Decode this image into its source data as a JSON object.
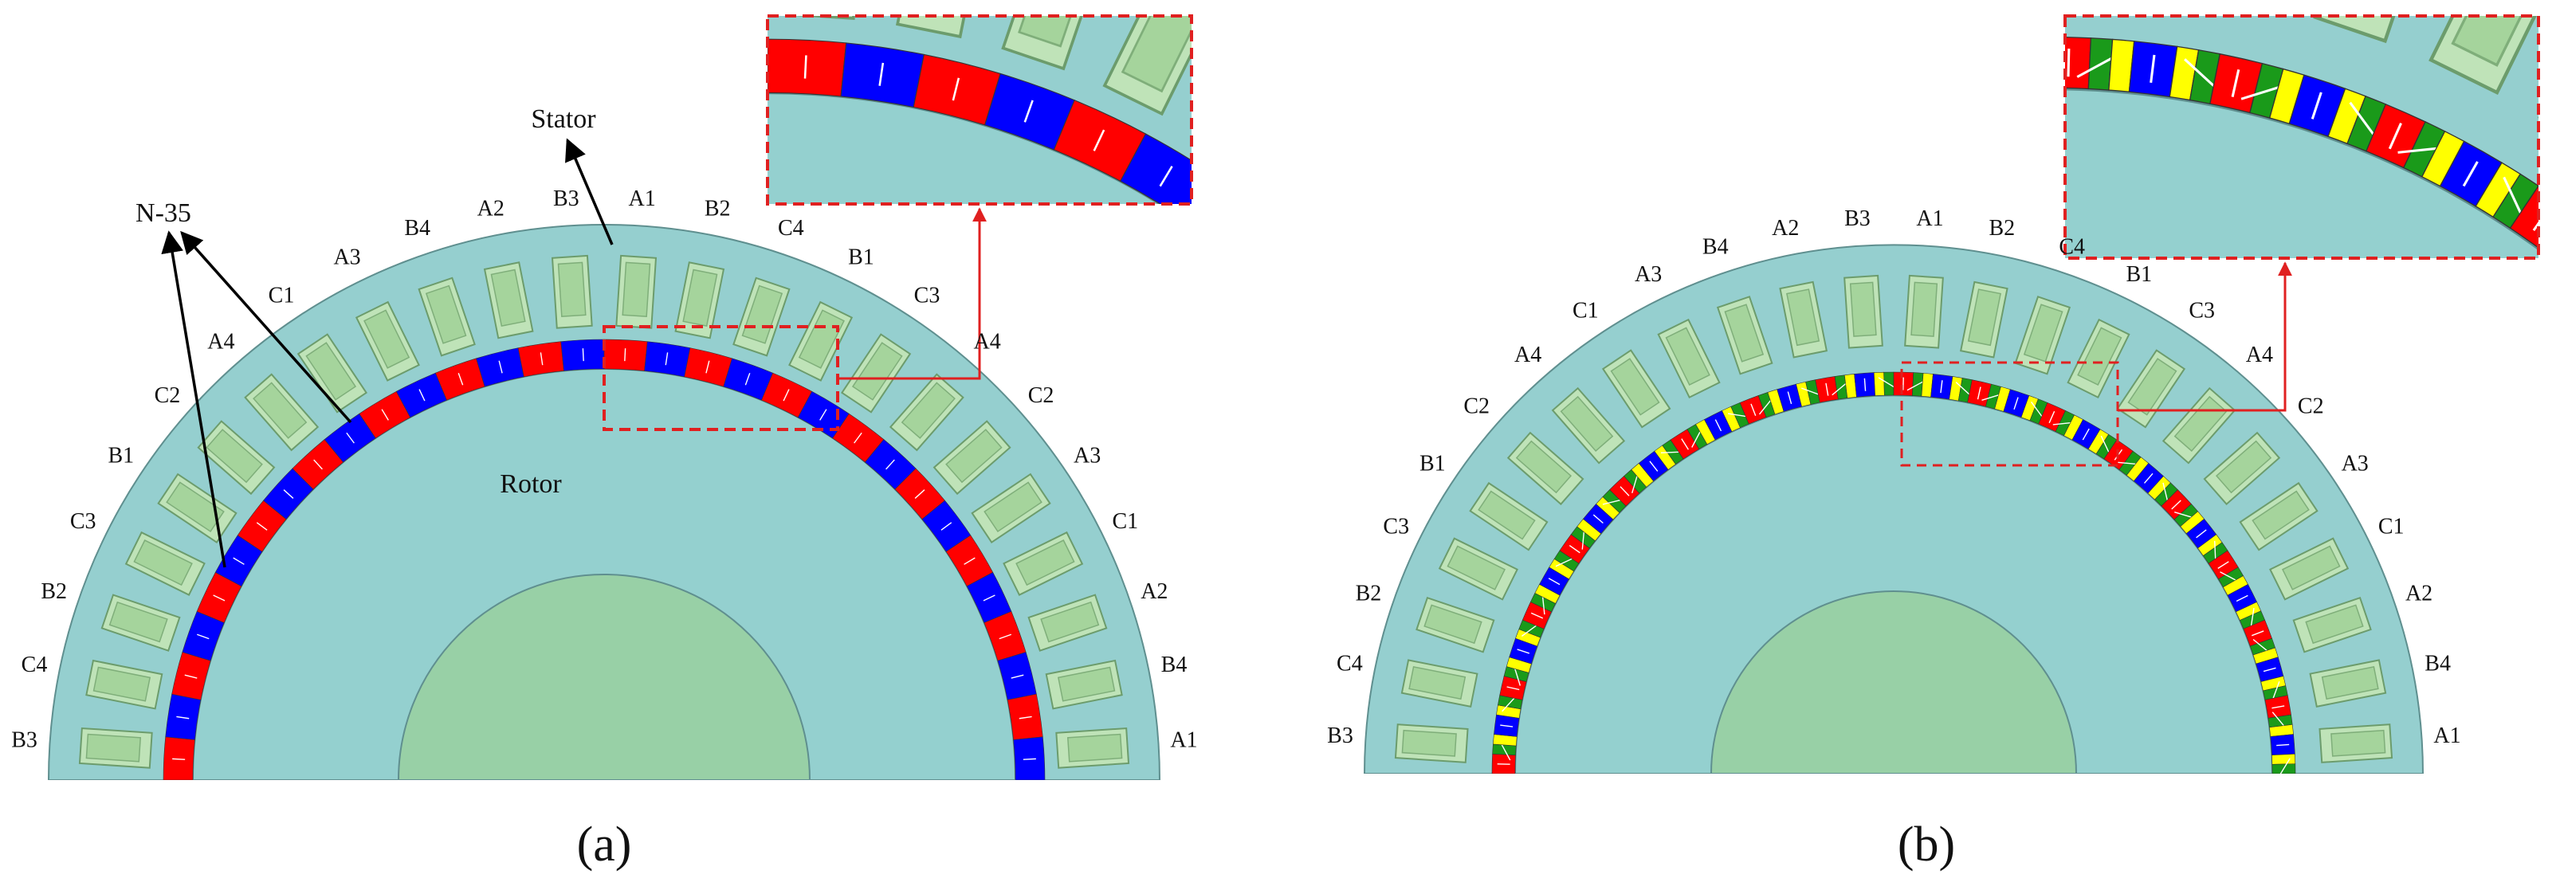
{
  "panel_a": {
    "stator_label": "Stator",
    "magnet_label": "N-35",
    "rotor_label": "Rotor",
    "slot_labels": [
      "B3",
      "C4",
      "B2",
      "C3",
      "B1",
      "C2",
      "A4",
      "C1",
      "A3",
      "B4",
      "A2",
      "B3",
      "A1",
      "B2",
      "C4",
      "B1",
      "C3",
      "A4",
      "C2",
      "A3",
      "C1",
      "A2",
      "B4",
      "A1"
    ],
    "caption": "(a)"
  },
  "panel_b": {
    "slot_labels": [
      "B3",
      "C4",
      "B2",
      "C3",
      "B1",
      "C2",
      "A4",
      "C1",
      "A3",
      "B4",
      "A2",
      "B3",
      "A1",
      "B2",
      "C4",
      "B1",
      "C3",
      "A4",
      "C2",
      "A3",
      "C1",
      "A2",
      "B4",
      "A1"
    ],
    "caption": "(b)"
  }
}
